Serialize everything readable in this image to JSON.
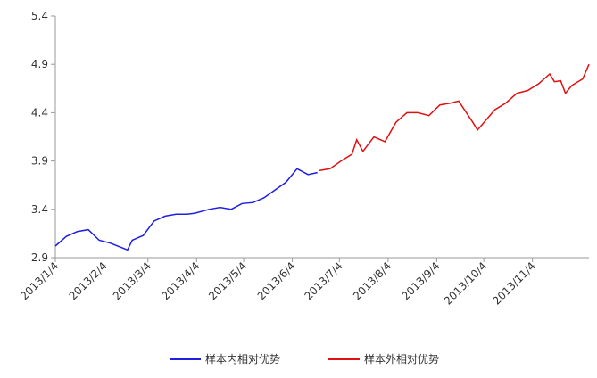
{
  "chart_data": {
    "type": "line",
    "x": [
      "2013/1/4",
      "2013/1/11",
      "2013/1/18",
      "2013/1/25",
      "2013/2/1",
      "2013/2/8",
      "2013/2/19",
      "2013/2/22",
      "2013/3/1",
      "2013/3/8",
      "2013/3/15",
      "2013/3/22",
      "2013/3/29",
      "2013/4/3",
      "2013/4/12",
      "2013/4/19",
      "2013/4/26",
      "2013/5/3",
      "2013/5/10",
      "2013/5/17",
      "2013/5/24",
      "2013/5/31",
      "2013/6/7",
      "2013/6/14",
      "2013/6/20",
      "2013/6/21",
      "2013/6/28",
      "2013/7/5",
      "2013/7/12",
      "2013/7/15",
      "2013/7/19",
      "2013/7/26",
      "2013/8/2",
      "2013/8/9",
      "2013/8/16",
      "2013/8/23",
      "2013/8/30",
      "2013/9/6",
      "2013/9/13",
      "2013/9/18",
      "2013/9/27",
      "2013/9/30",
      "2013/10/11",
      "2013/10/18",
      "2013/10/25",
      "2013/11/1",
      "2013/11/8",
      "2013/11/15",
      "2013/11/18",
      "2013/11/22",
      "2013/11/25",
      "2013/11/29",
      "2013/12/6",
      "2013/12/10"
    ],
    "series": [
      {
        "name": "样本内相对优势",
        "color": "#1f1fe0",
        "values": [
          3.02,
          3.12,
          3.17,
          3.19,
          3.08,
          3.05,
          2.98,
          3.08,
          3.13,
          3.28,
          3.33,
          3.35,
          3.35,
          3.36,
          3.4,
          3.42,
          3.4,
          3.46,
          3.47,
          3.52,
          3.6,
          3.68,
          3.82,
          3.76,
          3.78,
          null,
          null,
          null,
          null,
          null,
          null,
          null,
          null,
          null,
          null,
          null,
          null,
          null,
          null,
          null,
          null,
          null,
          null,
          null,
          null,
          null,
          null,
          null,
          null,
          null,
          null,
          null,
          null,
          null
        ]
      },
      {
        "name": "样本外相对优势",
        "color": "#e01010",
        "values": [
          null,
          null,
          null,
          null,
          null,
          null,
          null,
          null,
          null,
          null,
          null,
          null,
          null,
          null,
          null,
          null,
          null,
          null,
          null,
          null,
          null,
          null,
          null,
          null,
          null,
          3.8,
          3.82,
          3.9,
          3.97,
          4.12,
          4.0,
          4.15,
          4.1,
          4.3,
          4.4,
          4.4,
          4.37,
          4.48,
          4.5,
          4.52,
          4.3,
          4.22,
          4.43,
          4.5,
          4.6,
          4.63,
          4.7,
          4.8,
          4.72,
          4.73,
          4.6,
          4.68,
          4.75,
          4.9
        ]
      }
    ],
    "xticks": [
      "2013/1/4",
      "2013/2/4",
      "2013/3/4",
      "2013/4/4",
      "2013/5/4",
      "2013/6/4",
      "2013/7/4",
      "2013/8/4",
      "2013/9/4",
      "2013/10/4",
      "2013/11/4"
    ],
    "ylim": [
      2.9,
      5.4
    ],
    "yticks": [
      2.9,
      3.4,
      3.9,
      4.4,
      4.9,
      5.4
    ],
    "grid": false
  }
}
